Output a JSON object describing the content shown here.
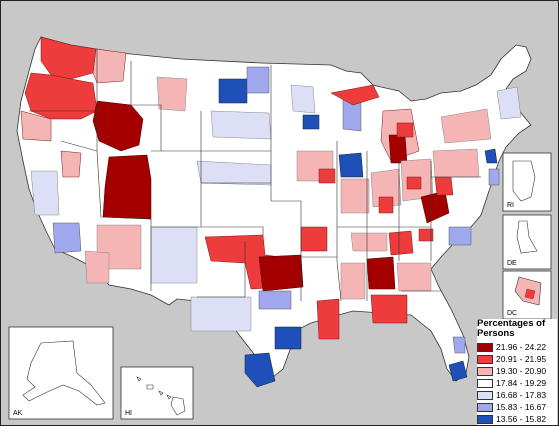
{
  "legend": {
    "title": "Percentages of Persons",
    "items": [
      {
        "range": "21.96 - 24.22",
        "color": "#a50000"
      },
      {
        "range": "20.91 - 21.95",
        "color": "#ee3b3b"
      },
      {
        "range": "19.30 - 20.90",
        "color": "#f5b5b5"
      },
      {
        "range": "17.84 - 19.29",
        "color": "#ffffff"
      },
      {
        "range": "16.68 - 17.83",
        "color": "#dcdff5"
      },
      {
        "range": "15.83 - 16.67",
        "color": "#9fa8ec"
      },
      {
        "range": "13.56 - 15.82",
        "color": "#1f4fb8"
      }
    ]
  },
  "insets": {
    "alaska": "AK",
    "hawaii": "HI",
    "rhode_island": "RI",
    "delaware": "DE",
    "dc": "DC"
  }
}
